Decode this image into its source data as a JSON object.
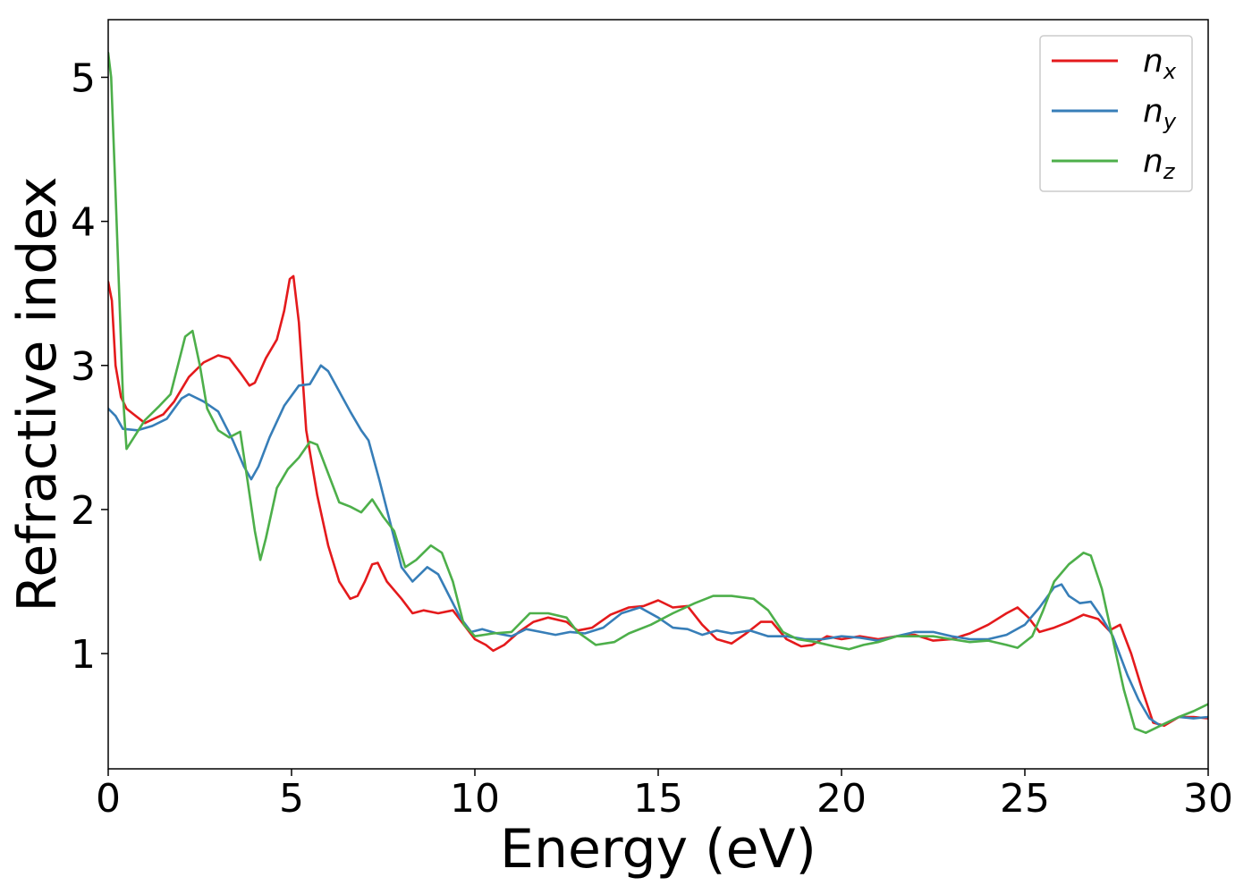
{
  "chart_data": {
    "type": "line",
    "title": "",
    "xlabel": "Energy (eV)",
    "ylabel": "Refractive index",
    "xlim": [
      0,
      30
    ],
    "ylim": [
      0.2,
      5.4
    ],
    "xticks": [
      0,
      5,
      10,
      15,
      20,
      25,
      30
    ],
    "yticks": [
      1,
      2,
      3,
      4,
      5
    ],
    "xtick_labels": [
      "0",
      "5",
      "10",
      "15",
      "20",
      "25",
      "30"
    ],
    "ytick_labels": [
      "1",
      "2",
      "3",
      "4",
      "5"
    ],
    "grid": false,
    "legend_position": "top-right",
    "series": [
      {
        "name": "n_x",
        "label_base": "n",
        "label_sub": "x",
        "color": "#e41a1c",
        "points": [
          [
            0,
            3.58
          ],
          [
            0.1,
            3.45
          ],
          [
            0.2,
            3.0
          ],
          [
            0.35,
            2.78
          ],
          [
            0.5,
            2.7
          ],
          [
            0.7,
            2.66
          ],
          [
            1.0,
            2.6
          ],
          [
            1.5,
            2.66
          ],
          [
            1.8,
            2.75
          ],
          [
            2.2,
            2.92
          ],
          [
            2.6,
            3.02
          ],
          [
            3.0,
            3.07
          ],
          [
            3.3,
            3.05
          ],
          [
            3.6,
            2.95
          ],
          [
            3.85,
            2.86
          ],
          [
            4.0,
            2.88
          ],
          [
            4.3,
            3.05
          ],
          [
            4.6,
            3.18
          ],
          [
            4.8,
            3.38
          ],
          [
            4.95,
            3.6
          ],
          [
            5.05,
            3.62
          ],
          [
            5.2,
            3.3
          ],
          [
            5.4,
            2.55
          ],
          [
            5.7,
            2.1
          ],
          [
            6.0,
            1.75
          ],
          [
            6.3,
            1.5
          ],
          [
            6.6,
            1.38
          ],
          [
            6.8,
            1.4
          ],
          [
            7.0,
            1.5
          ],
          [
            7.2,
            1.62
          ],
          [
            7.35,
            1.63
          ],
          [
            7.6,
            1.5
          ],
          [
            8.0,
            1.38
          ],
          [
            8.3,
            1.28
          ],
          [
            8.6,
            1.3
          ],
          [
            9.0,
            1.28
          ],
          [
            9.4,
            1.3
          ],
          [
            9.7,
            1.2
          ],
          [
            10.0,
            1.1
          ],
          [
            10.3,
            1.06
          ],
          [
            10.5,
            1.02
          ],
          [
            10.8,
            1.06
          ],
          [
            11.2,
            1.15
          ],
          [
            11.6,
            1.22
          ],
          [
            12.0,
            1.25
          ],
          [
            12.5,
            1.22
          ],
          [
            12.8,
            1.16
          ],
          [
            13.2,
            1.18
          ],
          [
            13.7,
            1.27
          ],
          [
            14.2,
            1.32
          ],
          [
            14.6,
            1.33
          ],
          [
            15.0,
            1.37
          ],
          [
            15.4,
            1.32
          ],
          [
            15.8,
            1.33
          ],
          [
            16.2,
            1.2
          ],
          [
            16.6,
            1.1
          ],
          [
            17.0,
            1.07
          ],
          [
            17.4,
            1.14
          ],
          [
            17.8,
            1.22
          ],
          [
            18.1,
            1.22
          ],
          [
            18.5,
            1.1
          ],
          [
            18.9,
            1.05
          ],
          [
            19.2,
            1.06
          ],
          [
            19.6,
            1.12
          ],
          [
            20.0,
            1.1
          ],
          [
            20.5,
            1.12
          ],
          [
            21.0,
            1.1
          ],
          [
            21.5,
            1.12
          ],
          [
            22.0,
            1.13
          ],
          [
            22.5,
            1.09
          ],
          [
            23.0,
            1.1
          ],
          [
            23.5,
            1.14
          ],
          [
            24.0,
            1.2
          ],
          [
            24.5,
            1.28
          ],
          [
            24.8,
            1.32
          ],
          [
            25.1,
            1.25
          ],
          [
            25.4,
            1.15
          ],
          [
            25.8,
            1.18
          ],
          [
            26.2,
            1.22
          ],
          [
            26.6,
            1.27
          ],
          [
            27.0,
            1.24
          ],
          [
            27.3,
            1.16
          ],
          [
            27.6,
            1.2
          ],
          [
            27.9,
            1.0
          ],
          [
            28.2,
            0.75
          ],
          [
            28.5,
            0.52
          ],
          [
            28.8,
            0.5
          ],
          [
            29.2,
            0.56
          ],
          [
            29.6,
            0.56
          ],
          [
            30.0,
            0.55
          ]
        ]
      },
      {
        "name": "n_y",
        "label_base": "n",
        "label_sub": "y",
        "color": "#377eb8",
        "points": [
          [
            0,
            2.7
          ],
          [
            0.2,
            2.65
          ],
          [
            0.4,
            2.56
          ],
          [
            0.8,
            2.55
          ],
          [
            1.2,
            2.58
          ],
          [
            1.6,
            2.63
          ],
          [
            2.0,
            2.77
          ],
          [
            2.2,
            2.8
          ],
          [
            2.6,
            2.75
          ],
          [
            3.0,
            2.68
          ],
          [
            3.4,
            2.48
          ],
          [
            3.7,
            2.3
          ],
          [
            3.9,
            2.21
          ],
          [
            4.1,
            2.3
          ],
          [
            4.4,
            2.5
          ],
          [
            4.8,
            2.72
          ],
          [
            5.2,
            2.86
          ],
          [
            5.5,
            2.87
          ],
          [
            5.8,
            3.0
          ],
          [
            6.0,
            2.96
          ],
          [
            6.3,
            2.82
          ],
          [
            6.6,
            2.68
          ],
          [
            6.9,
            2.55
          ],
          [
            7.1,
            2.48
          ],
          [
            7.4,
            2.2
          ],
          [
            7.7,
            1.9
          ],
          [
            8.0,
            1.6
          ],
          [
            8.3,
            1.5
          ],
          [
            8.7,
            1.6
          ],
          [
            9.0,
            1.55
          ],
          [
            9.3,
            1.4
          ],
          [
            9.6,
            1.25
          ],
          [
            9.9,
            1.15
          ],
          [
            10.2,
            1.17
          ],
          [
            10.6,
            1.14
          ],
          [
            11.0,
            1.12
          ],
          [
            11.4,
            1.17
          ],
          [
            11.8,
            1.15
          ],
          [
            12.2,
            1.13
          ],
          [
            12.6,
            1.15
          ],
          [
            13.0,
            1.14
          ],
          [
            13.5,
            1.18
          ],
          [
            14.0,
            1.28
          ],
          [
            14.5,
            1.32
          ],
          [
            15.0,
            1.25
          ],
          [
            15.4,
            1.18
          ],
          [
            15.8,
            1.17
          ],
          [
            16.2,
            1.13
          ],
          [
            16.6,
            1.16
          ],
          [
            17.0,
            1.14
          ],
          [
            17.5,
            1.16
          ],
          [
            18.0,
            1.12
          ],
          [
            18.5,
            1.12
          ],
          [
            19.0,
            1.1
          ],
          [
            19.5,
            1.1
          ],
          [
            20.0,
            1.12
          ],
          [
            20.5,
            1.11
          ],
          [
            21.0,
            1.09
          ],
          [
            21.5,
            1.12
          ],
          [
            22.0,
            1.15
          ],
          [
            22.5,
            1.15
          ],
          [
            23.0,
            1.12
          ],
          [
            23.5,
            1.1
          ],
          [
            24.0,
            1.1
          ],
          [
            24.5,
            1.13
          ],
          [
            25.0,
            1.2
          ],
          [
            25.4,
            1.32
          ],
          [
            25.8,
            1.46
          ],
          [
            26.0,
            1.48
          ],
          [
            26.2,
            1.4
          ],
          [
            26.5,
            1.35
          ],
          [
            26.8,
            1.36
          ],
          [
            27.1,
            1.25
          ],
          [
            27.4,
            1.12
          ],
          [
            27.8,
            0.85
          ],
          [
            28.1,
            0.68
          ],
          [
            28.4,
            0.55
          ],
          [
            28.7,
            0.5
          ],
          [
            29.2,
            0.56
          ],
          [
            29.6,
            0.55
          ],
          [
            30.0,
            0.56
          ]
        ]
      },
      {
        "name": "n_z",
        "label_base": "n",
        "label_sub": "z",
        "color": "#4daf4a",
        "points": [
          [
            0,
            5.17
          ],
          [
            0.08,
            5.0
          ],
          [
            0.2,
            4.2
          ],
          [
            0.3,
            3.5
          ],
          [
            0.4,
            2.8
          ],
          [
            0.5,
            2.42
          ],
          [
            0.7,
            2.5
          ],
          [
            1.0,
            2.62
          ],
          [
            1.4,
            2.72
          ],
          [
            1.7,
            2.8
          ],
          [
            1.9,
            3.0
          ],
          [
            2.1,
            3.2
          ],
          [
            2.3,
            3.24
          ],
          [
            2.5,
            3.0
          ],
          [
            2.7,
            2.7
          ],
          [
            3.0,
            2.55
          ],
          [
            3.3,
            2.5
          ],
          [
            3.6,
            2.54
          ],
          [
            3.8,
            2.2
          ],
          [
            4.0,
            1.85
          ],
          [
            4.15,
            1.65
          ],
          [
            4.3,
            1.8
          ],
          [
            4.6,
            2.15
          ],
          [
            4.9,
            2.28
          ],
          [
            5.2,
            2.36
          ],
          [
            5.5,
            2.47
          ],
          [
            5.7,
            2.45
          ],
          [
            6.0,
            2.25
          ],
          [
            6.3,
            2.05
          ],
          [
            6.6,
            2.02
          ],
          [
            6.9,
            1.98
          ],
          [
            7.2,
            2.07
          ],
          [
            7.5,
            1.95
          ],
          [
            7.8,
            1.85
          ],
          [
            8.1,
            1.6
          ],
          [
            8.4,
            1.65
          ],
          [
            8.8,
            1.75
          ],
          [
            9.1,
            1.7
          ],
          [
            9.4,
            1.5
          ],
          [
            9.7,
            1.2
          ],
          [
            10.0,
            1.12
          ],
          [
            10.5,
            1.14
          ],
          [
            11.0,
            1.15
          ],
          [
            11.5,
            1.28
          ],
          [
            12.0,
            1.28
          ],
          [
            12.5,
            1.25
          ],
          [
            12.8,
            1.15
          ],
          [
            13.3,
            1.06
          ],
          [
            13.8,
            1.08
          ],
          [
            14.2,
            1.14
          ],
          [
            14.8,
            1.2
          ],
          [
            15.4,
            1.28
          ],
          [
            16.0,
            1.35
          ],
          [
            16.5,
            1.4
          ],
          [
            17.0,
            1.4
          ],
          [
            17.6,
            1.38
          ],
          [
            18.0,
            1.3
          ],
          [
            18.4,
            1.15
          ],
          [
            18.8,
            1.1
          ],
          [
            19.3,
            1.08
          ],
          [
            19.8,
            1.05
          ],
          [
            20.2,
            1.03
          ],
          [
            20.6,
            1.06
          ],
          [
            21.0,
            1.08
          ],
          [
            21.5,
            1.12
          ],
          [
            22.0,
            1.12
          ],
          [
            22.5,
            1.12
          ],
          [
            23.0,
            1.1
          ],
          [
            23.5,
            1.08
          ],
          [
            24.0,
            1.09
          ],
          [
            24.5,
            1.06
          ],
          [
            24.8,
            1.04
          ],
          [
            25.2,
            1.12
          ],
          [
            25.5,
            1.3
          ],
          [
            25.8,
            1.5
          ],
          [
            26.2,
            1.62
          ],
          [
            26.6,
            1.7
          ],
          [
            26.8,
            1.68
          ],
          [
            27.1,
            1.45
          ],
          [
            27.4,
            1.1
          ],
          [
            27.7,
            0.75
          ],
          [
            28.0,
            0.48
          ],
          [
            28.3,
            0.45
          ],
          [
            28.7,
            0.5
          ],
          [
            29.2,
            0.56
          ],
          [
            29.6,
            0.6
          ],
          [
            30.0,
            0.65
          ]
        ]
      }
    ]
  }
}
